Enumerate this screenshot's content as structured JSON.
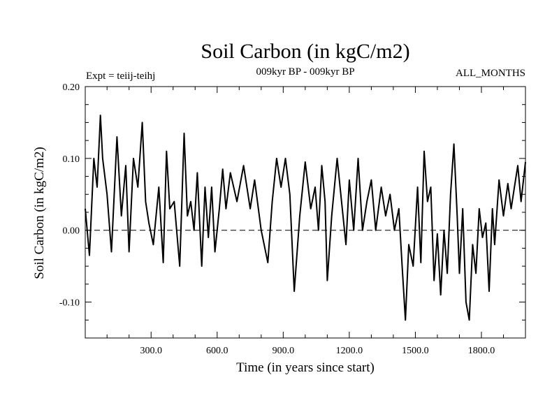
{
  "header": {
    "title": "Soil Carbon (in kgC/m2)",
    "subtitle": "009kyr BP - 009kyr BP",
    "experiment": "Expt = teiij-teihj",
    "months": "ALL_MONTHS"
  },
  "chart_data": {
    "type": "line",
    "title": "Soil Carbon (in kgC/m2)",
    "subtitle": "009kyr BP - 009kyr BP",
    "xlabel": "Time (in years since start)",
    "ylabel": "Soil Carbon (in kgC/m2)",
    "xlim": [
      1,
      2000
    ],
    "ylim": [
      -0.15,
      0.2
    ],
    "x_ticks": [
      300,
      600,
      900,
      1200,
      1500,
      1800
    ],
    "x_tick_labels": [
      "300.0",
      "600.0",
      "900.0",
      "1200.0",
      "1500.0",
      "1800.0"
    ],
    "y_ticks": [
      -0.1,
      0.0,
      0.1,
      0.2
    ],
    "y_tick_labels": [
      "-0.10",
      "0.00",
      "0.10",
      "0.20"
    ],
    "reference_line": {
      "y": 0.0,
      "style": "dashed"
    },
    "line_color": "#000000",
    "series": [
      {
        "name": "teiij-teihj",
        "x": [
          1,
          20,
          40,
          55,
          70,
          80,
          100,
          120,
          145,
          165,
          185,
          200,
          220,
          240,
          260,
          275,
          290,
          310,
          335,
          355,
          370,
          385,
          405,
          430,
          450,
          465,
          480,
          495,
          510,
          530,
          545,
          560,
          575,
          590,
          610,
          625,
          640,
          660,
          690,
          720,
          750,
          770,
          800,
          830,
          850,
          870,
          890,
          910,
          930,
          950,
          975,
          1000,
          1025,
          1045,
          1060,
          1075,
          1090,
          1100,
          1120,
          1145,
          1165,
          1185,
          1200,
          1220,
          1240,
          1260,
          1280,
          1300,
          1320,
          1345,
          1365,
          1385,
          1405,
          1425,
          1440,
          1455,
          1470,
          1490,
          1510,
          1525,
          1540,
          1555,
          1570,
          1585,
          1600,
          1615,
          1630,
          1645,
          1660,
          1675,
          1690,
          1700,
          1715,
          1730,
          1745,
          1760,
          1775,
          1790,
          1805,
          1820,
          1835,
          1850,
          1860,
          1880,
          1900,
          1920,
          1935,
          1950,
          1965,
          1980,
          2000
        ],
        "values": [
          0.03,
          -0.035,
          0.1,
          0.06,
          0.16,
          0.1,
          0.05,
          -0.03,
          0.13,
          0.02,
          0.09,
          -0.03,
          0.1,
          0.06,
          0.15,
          0.04,
          0.01,
          -0.02,
          0.06,
          -0.045,
          0.11,
          0.03,
          0.04,
          -0.05,
          0.135,
          0.02,
          0.04,
          0.0,
          0.08,
          -0.05,
          0.06,
          -0.01,
          0.06,
          -0.03,
          0.03,
          0.085,
          0.03,
          0.08,
          0.04,
          0.09,
          0.03,
          0.07,
          0.0,
          -0.045,
          0.04,
          0.1,
          0.06,
          0.1,
          0.05,
          -0.085,
          0.02,
          0.095,
          0.03,
          0.06,
          0.0,
          0.09,
          0.04,
          -0.07,
          0.02,
          0.1,
          0.04,
          -0.02,
          0.07,
          0.0,
          0.1,
          0.0,
          0.04,
          0.07,
          0.0,
          0.06,
          0.02,
          0.05,
          0.0,
          0.03,
          -0.05,
          -0.125,
          -0.02,
          -0.05,
          0.06,
          -0.045,
          0.11,
          0.04,
          0.06,
          -0.07,
          -0.005,
          -0.09,
          0.0,
          -0.06,
          0.05,
          0.12,
          0.02,
          -0.06,
          0.03,
          -0.1,
          -0.125,
          -0.02,
          -0.06,
          0.03,
          -0.01,
          0.01,
          -0.085,
          0.03,
          -0.02,
          0.07,
          0.02,
          0.065,
          0.03,
          0.06,
          0.09,
          0.04,
          0.095
        ]
      }
    ]
  }
}
